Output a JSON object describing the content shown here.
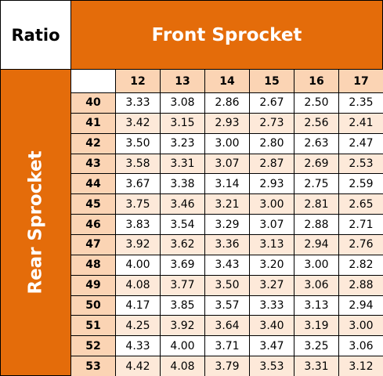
{
  "header": {
    "corner": "Ratio",
    "title": "Front Sprocket",
    "side": "Rear Sprocket"
  },
  "table": {
    "columns": [
      "12",
      "13",
      "14",
      "15",
      "16",
      "17"
    ],
    "rows": [
      {
        "label": "40",
        "values": [
          "3.33",
          "3.08",
          "2.86",
          "2.67",
          "2.50",
          "2.35"
        ]
      },
      {
        "label": "41",
        "values": [
          "3.42",
          "3.15",
          "2.93",
          "2.73",
          "2.56",
          "2.41"
        ]
      },
      {
        "label": "42",
        "values": [
          "3.50",
          "3.23",
          "3.00",
          "2.80",
          "2.63",
          "2.47"
        ]
      },
      {
        "label": "43",
        "values": [
          "3.58",
          "3.31",
          "3.07",
          "2.87",
          "2.69",
          "2.53"
        ]
      },
      {
        "label": "44",
        "values": [
          "3.67",
          "3.38",
          "3.14",
          "2.93",
          "2.75",
          "2.59"
        ]
      },
      {
        "label": "45",
        "values": [
          "3.75",
          "3.46",
          "3.21",
          "3.00",
          "2.81",
          "2.65"
        ]
      },
      {
        "label": "46",
        "values": [
          "3.83",
          "3.54",
          "3.29",
          "3.07",
          "2.88",
          "2.71"
        ]
      },
      {
        "label": "47",
        "values": [
          "3.92",
          "3.62",
          "3.36",
          "3.13",
          "2.94",
          "2.76"
        ]
      },
      {
        "label": "48",
        "values": [
          "4.00",
          "3.69",
          "3.43",
          "3.20",
          "3.00",
          "2.82"
        ]
      },
      {
        "label": "49",
        "values": [
          "4.08",
          "3.77",
          "3.50",
          "3.27",
          "3.06",
          "2.88"
        ]
      },
      {
        "label": "50",
        "values": [
          "4.17",
          "3.85",
          "3.57",
          "3.33",
          "3.13",
          "2.94"
        ]
      },
      {
        "label": "51",
        "values": [
          "4.25",
          "3.92",
          "3.64",
          "3.40",
          "3.19",
          "3.00"
        ]
      },
      {
        "label": "52",
        "values": [
          "4.33",
          "4.00",
          "3.71",
          "3.47",
          "3.25",
          "3.06"
        ]
      },
      {
        "label": "53",
        "values": [
          "4.42",
          "4.08",
          "3.79",
          "3.53",
          "3.31",
          "3.12"
        ]
      }
    ]
  }
}
